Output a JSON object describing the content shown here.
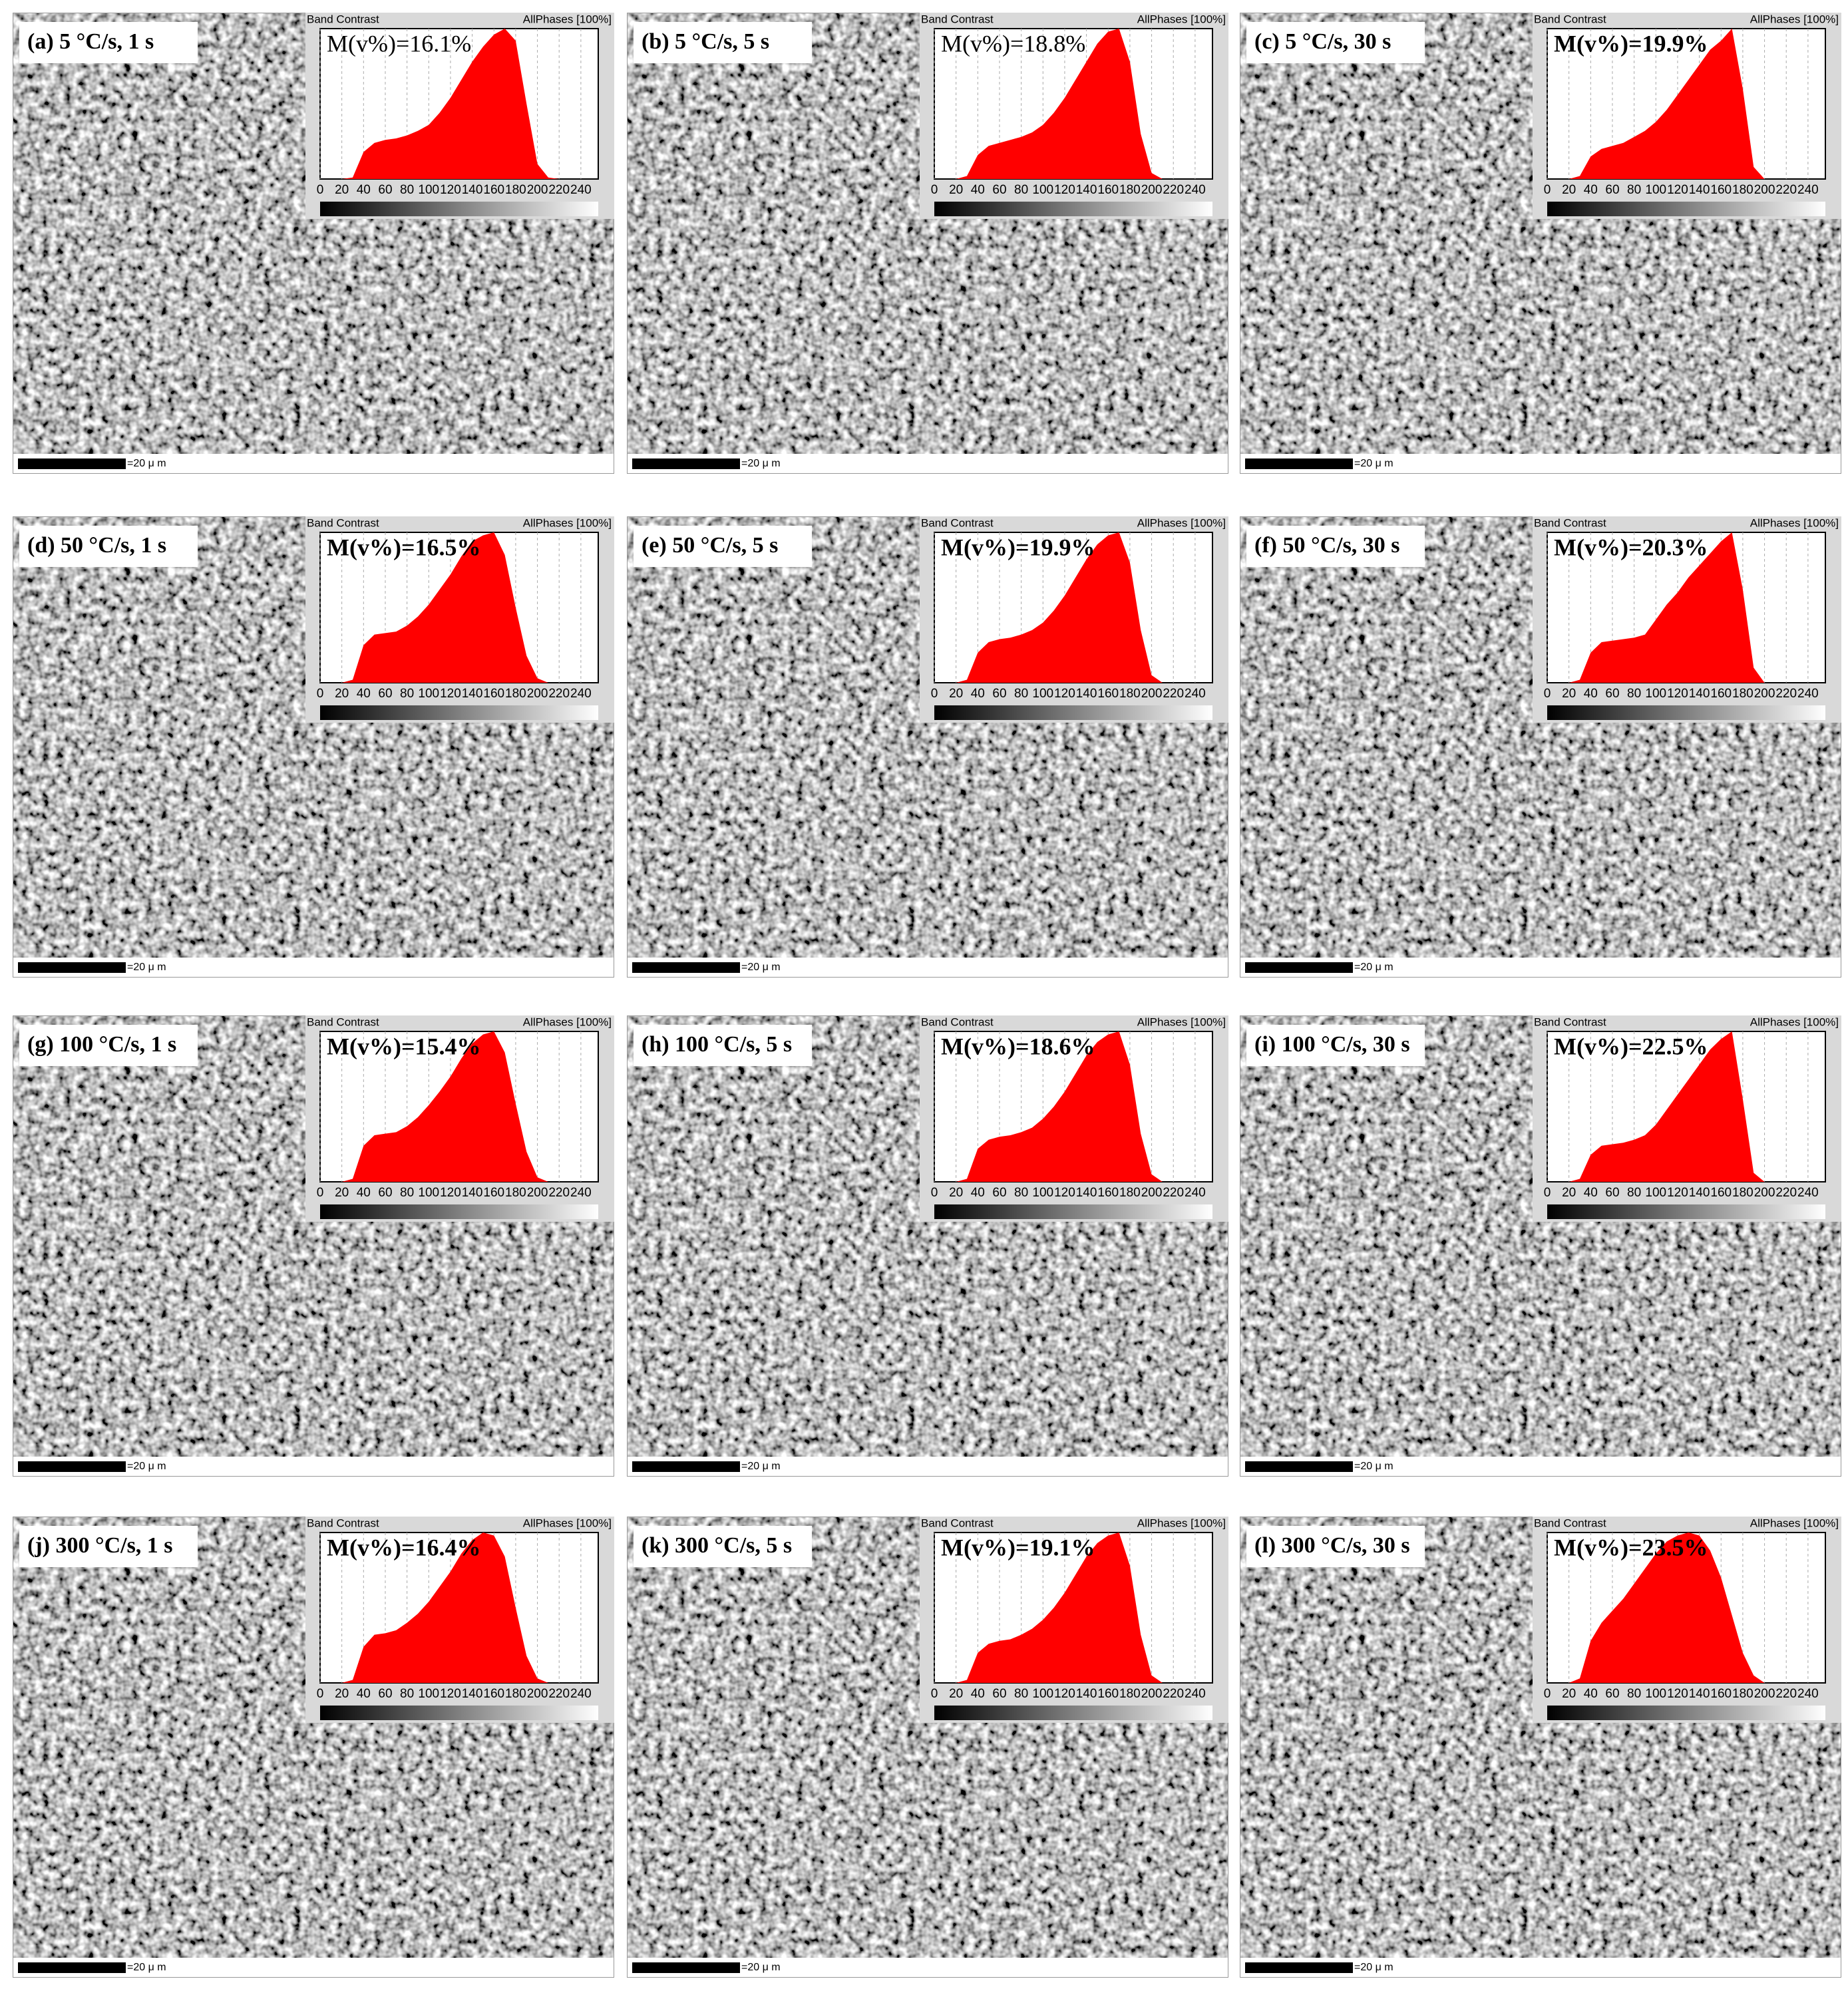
{
  "chart_data": [
    {
      "type": "area",
      "label": "(a) 5 °C/s, 1 s",
      "annotation": "M(v%)=16.1%",
      "annotation_weight": "normal",
      "title": "Band Contrast",
      "subtitle": "AllPhases [100%]",
      "scale_label": "=20 μ m",
      "color": "#ff0000",
      "grid": true,
      "xlim": [
        0,
        256
      ],
      "ylim": [
        0,
        100
      ],
      "xticks": [
        0,
        20,
        40,
        60,
        80,
        100,
        120,
        140,
        160,
        180,
        200,
        220,
        240
      ],
      "x": [
        0,
        10,
        20,
        30,
        40,
        50,
        60,
        70,
        80,
        90,
        100,
        110,
        120,
        130,
        140,
        150,
        160,
        170,
        180,
        190,
        200,
        210,
        220,
        230,
        240,
        250
      ],
      "values": [
        0,
        0,
        0,
        1,
        18,
        24,
        26,
        27,
        29,
        32,
        36,
        44,
        54,
        66,
        78,
        88,
        96,
        100,
        92,
        50,
        10,
        1,
        0,
        0,
        0,
        0
      ]
    },
    {
      "type": "area",
      "label": "(b) 5 °C/s, 5 s",
      "annotation": "M(v%)=18.8%",
      "annotation_weight": "normal",
      "title": "Band Contrast",
      "subtitle": "AllPhases [100%]",
      "scale_label": "=20 μ m",
      "color": "#ff0000",
      "grid": true,
      "xlim": [
        0,
        256
      ],
      "ylim": [
        0,
        100
      ],
      "xticks": [
        0,
        20,
        40,
        60,
        80,
        100,
        120,
        140,
        160,
        180,
        200,
        220,
        240
      ],
      "x": [
        0,
        10,
        20,
        30,
        40,
        50,
        60,
        70,
        80,
        90,
        100,
        110,
        120,
        130,
        140,
        150,
        160,
        170,
        180,
        190,
        200,
        210,
        220,
        230,
        240,
        250
      ],
      "values": [
        0,
        0,
        0,
        2,
        16,
        22,
        24,
        26,
        28,
        31,
        36,
        44,
        54,
        66,
        78,
        90,
        98,
        100,
        78,
        30,
        4,
        0,
        0,
        0,
        0,
        0
      ]
    },
    {
      "type": "area",
      "label": "(c) 5 °C/s, 30 s",
      "annotation": "M(v%)=19.9%",
      "annotation_weight": "bold",
      "title": "Band Contrast",
      "subtitle": "AllPhases [100%]",
      "scale_label": "=20 μ m",
      "color": "#ff0000",
      "grid": true,
      "xlim": [
        0,
        256
      ],
      "ylim": [
        0,
        100
      ],
      "xticks": [
        0,
        20,
        40,
        60,
        80,
        100,
        120,
        140,
        160,
        180,
        200,
        220,
        240
      ],
      "x": [
        0,
        10,
        20,
        30,
        40,
        50,
        60,
        70,
        80,
        90,
        100,
        110,
        120,
        130,
        140,
        150,
        160,
        170,
        180,
        190,
        200,
        210,
        220,
        230,
        240,
        250
      ],
      "values": [
        0,
        0,
        0,
        2,
        15,
        20,
        22,
        24,
        28,
        32,
        38,
        46,
        56,
        66,
        76,
        86,
        92,
        100,
        60,
        8,
        0,
        0,
        0,
        0,
        0,
        0
      ]
    },
    {
      "type": "area",
      "label": "(d) 50 °C/s, 1 s",
      "annotation": "M(v%)=16.5%",
      "annotation_weight": "bold",
      "title": "Band Contrast",
      "subtitle": "AllPhases [100%]",
      "scale_label": "=20 μ m",
      "color": "#ff0000",
      "grid": true,
      "xlim": [
        0,
        256
      ],
      "ylim": [
        0,
        100
      ],
      "xticks": [
        0,
        20,
        40,
        60,
        80,
        100,
        120,
        140,
        160,
        180,
        200,
        220,
        240
      ],
      "x": [
        0,
        10,
        20,
        30,
        40,
        50,
        60,
        70,
        80,
        90,
        100,
        110,
        120,
        130,
        140,
        150,
        160,
        170,
        180,
        190,
        200,
        210,
        220,
        230,
        240,
        250
      ],
      "values": [
        0,
        0,
        0,
        2,
        25,
        32,
        33,
        34,
        38,
        44,
        52,
        62,
        72,
        84,
        94,
        98,
        100,
        85,
        50,
        18,
        3,
        0,
        0,
        0,
        0,
        0
      ]
    },
    {
      "type": "area",
      "label": "(e) 50 °C/s, 5 s",
      "annotation": "M(v%)=19.9%",
      "annotation_weight": "bold",
      "title": "Band Contrast",
      "subtitle": "AllPhases [100%]",
      "scale_label": "=20 μ m",
      "color": "#ff0000",
      "grid": true,
      "xlim": [
        0,
        256
      ],
      "ylim": [
        0,
        100
      ],
      "xticks": [
        0,
        20,
        40,
        60,
        80,
        100,
        120,
        140,
        160,
        180,
        200,
        220,
        240
      ],
      "x": [
        0,
        10,
        20,
        30,
        40,
        50,
        60,
        70,
        80,
        90,
        100,
        110,
        120,
        130,
        140,
        150,
        160,
        170,
        180,
        190,
        200,
        210,
        220,
        230,
        240,
        250
      ],
      "values": [
        0,
        0,
        0,
        2,
        20,
        27,
        29,
        30,
        32,
        35,
        40,
        48,
        58,
        70,
        82,
        92,
        98,
        100,
        80,
        35,
        5,
        0,
        0,
        0,
        0,
        0
      ]
    },
    {
      "type": "area",
      "label": "(f) 50 °C/s, 30 s",
      "annotation": "M(v%)=20.3%",
      "annotation_weight": "bold",
      "title": "Band Contrast",
      "subtitle": "AllPhases [100%]",
      "scale_label": "=20 μ m",
      "color": "#ff0000",
      "grid": true,
      "xlim": [
        0,
        256
      ],
      "ylim": [
        0,
        100
      ],
      "xticks": [
        0,
        20,
        40,
        60,
        80,
        100,
        120,
        140,
        160,
        180,
        200,
        220,
        240
      ],
      "x": [
        0,
        10,
        20,
        30,
        40,
        50,
        60,
        70,
        80,
        90,
        100,
        110,
        120,
        130,
        140,
        150,
        160,
        170,
        180,
        190,
        200,
        210,
        220,
        230,
        240,
        250
      ],
      "values": [
        0,
        0,
        0,
        2,
        20,
        27,
        28,
        29,
        30,
        32,
        42,
        52,
        60,
        70,
        78,
        86,
        94,
        100,
        62,
        10,
        0,
        0,
        0,
        0,
        0,
        0
      ]
    },
    {
      "type": "area",
      "label": "(g) 100 °C/s, 1 s",
      "annotation": "M(v%)=15.4%",
      "annotation_weight": "bold",
      "title": "Band Contrast",
      "subtitle": "AllPhases [100%]",
      "scale_label": "=20 μ m",
      "color": "#ff0000",
      "grid": true,
      "xlim": [
        0,
        256
      ],
      "ylim": [
        0,
        100
      ],
      "xticks": [
        0,
        20,
        40,
        60,
        80,
        100,
        120,
        140,
        160,
        180,
        200,
        220,
        240
      ],
      "x": [
        0,
        10,
        20,
        30,
        40,
        50,
        60,
        70,
        80,
        90,
        100,
        110,
        120,
        130,
        140,
        150,
        160,
        170,
        180,
        190,
        200,
        210,
        220,
        230,
        240,
        250
      ],
      "values": [
        0,
        0,
        0,
        2,
        24,
        31,
        32,
        33,
        37,
        43,
        51,
        60,
        70,
        82,
        92,
        98,
        100,
        86,
        52,
        20,
        3,
        0,
        0,
        0,
        0,
        0
      ]
    },
    {
      "type": "area",
      "label": "(h) 100 °C/s, 5 s",
      "annotation": "M(v%)=18.6%",
      "annotation_weight": "bold",
      "title": "Band Contrast",
      "subtitle": "AllPhases [100%]",
      "scale_label": "=20 μ m",
      "color": "#ff0000",
      "grid": true,
      "xlim": [
        0,
        256
      ],
      "ylim": [
        0,
        100
      ],
      "xticks": [
        0,
        20,
        40,
        60,
        80,
        100,
        120,
        140,
        160,
        180,
        200,
        220,
        240
      ],
      "x": [
        0,
        10,
        20,
        30,
        40,
        50,
        60,
        70,
        80,
        90,
        100,
        110,
        120,
        130,
        140,
        150,
        160,
        170,
        180,
        190,
        200,
        210,
        220,
        230,
        240,
        250
      ],
      "values": [
        0,
        0,
        0,
        2,
        22,
        28,
        30,
        31,
        33,
        36,
        42,
        50,
        60,
        72,
        84,
        93,
        98,
        100,
        78,
        32,
        5,
        0,
        0,
        0,
        0,
        0
      ]
    },
    {
      "type": "area",
      "label": "(i) 100 °C/s, 30 s",
      "annotation": "M(v%)=22.5%",
      "annotation_weight": "bold",
      "title": "Band Contrast",
      "subtitle": "AllPhases [100%]",
      "scale_label": "=20 μ m",
      "color": "#ff0000",
      "grid": true,
      "xlim": [
        0,
        256
      ],
      "ylim": [
        0,
        100
      ],
      "xticks": [
        0,
        20,
        40,
        60,
        80,
        100,
        120,
        140,
        160,
        180,
        200,
        220,
        240
      ],
      "x": [
        0,
        10,
        20,
        30,
        40,
        50,
        60,
        70,
        80,
        90,
        100,
        110,
        120,
        130,
        140,
        150,
        160,
        170,
        180,
        190,
        200,
        210,
        220,
        230,
        240,
        250
      ],
      "values": [
        0,
        0,
        0,
        2,
        18,
        24,
        25,
        26,
        28,
        31,
        38,
        48,
        58,
        68,
        78,
        88,
        95,
        100,
        55,
        6,
        0,
        0,
        0,
        0,
        0,
        0
      ]
    },
    {
      "type": "area",
      "label": "(j) 300 °C/s, 1 s",
      "annotation": "M(v%)=16.4%",
      "annotation_weight": "bold",
      "title": "Band Contrast",
      "subtitle": "AllPhases [100%]",
      "scale_label": "=20 μ m",
      "color": "#ff0000",
      "grid": true,
      "xlim": [
        0,
        256
      ],
      "ylim": [
        0,
        100
      ],
      "xticks": [
        0,
        20,
        40,
        60,
        80,
        100,
        120,
        140,
        160,
        180,
        200,
        220,
        240
      ],
      "x": [
        0,
        10,
        20,
        30,
        40,
        50,
        60,
        70,
        80,
        90,
        100,
        110,
        120,
        130,
        140,
        150,
        160,
        170,
        180,
        190,
        200,
        210,
        220,
        230,
        240,
        250
      ],
      "values": [
        0,
        0,
        0,
        2,
        24,
        32,
        33,
        35,
        40,
        46,
        54,
        64,
        74,
        86,
        95,
        100,
        98,
        84,
        50,
        18,
        3,
        0,
        0,
        0,
        0,
        0
      ]
    },
    {
      "type": "area",
      "label": "(k) 300 °C/s, 5 s",
      "annotation": "M(v%)=19.1%",
      "annotation_weight": "bold",
      "title": "Band Contrast",
      "subtitle": "AllPhases [100%]",
      "scale_label": "=20 μ m",
      "color": "#ff0000",
      "grid": true,
      "xlim": [
        0,
        256
      ],
      "ylim": [
        0,
        100
      ],
      "xticks": [
        0,
        20,
        40,
        60,
        80,
        100,
        120,
        140,
        160,
        180,
        200,
        220,
        240
      ],
      "x": [
        0,
        10,
        20,
        30,
        40,
        50,
        60,
        70,
        80,
        90,
        100,
        110,
        120,
        130,
        140,
        150,
        160,
        170,
        180,
        190,
        200,
        210,
        220,
        230,
        240,
        250
      ],
      "values": [
        0,
        0,
        0,
        2,
        20,
        26,
        28,
        29,
        32,
        36,
        42,
        50,
        60,
        72,
        84,
        93,
        98,
        100,
        78,
        32,
        5,
        0,
        0,
        0,
        0,
        0
      ]
    },
    {
      "type": "area",
      "label": "(l) 300 °C/s, 30 s",
      "annotation": "M(v%)=23.5%",
      "annotation_weight": "bold",
      "title": "Band Contrast",
      "subtitle": "AllPhases [100%]",
      "scale_label": "=20 μ m",
      "color": "#ff0000",
      "grid": true,
      "xlim": [
        0,
        256
      ],
      "ylim": [
        0,
        100
      ],
      "xticks": [
        0,
        20,
        40,
        60,
        80,
        100,
        120,
        140,
        160,
        180,
        200,
        220,
        240
      ],
      "x": [
        0,
        10,
        20,
        30,
        40,
        50,
        60,
        70,
        80,
        90,
        100,
        110,
        120,
        130,
        140,
        150,
        160,
        170,
        180,
        190,
        200,
        210,
        220,
        230,
        240,
        250
      ],
      "values": [
        0,
        0,
        0,
        3,
        28,
        40,
        48,
        56,
        66,
        76,
        86,
        94,
        98,
        100,
        98,
        88,
        70,
        45,
        20,
        5,
        0,
        0,
        0,
        0,
        0,
        0
      ]
    }
  ]
}
